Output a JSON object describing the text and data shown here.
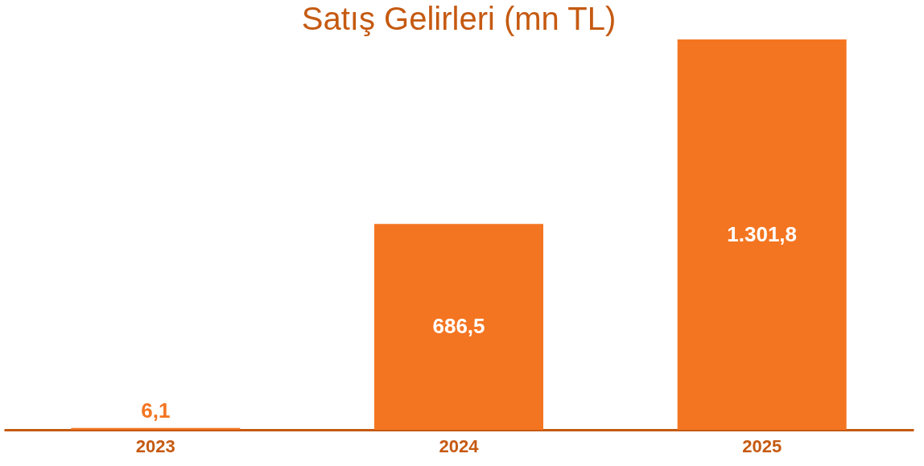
{
  "chart_data": {
    "type": "bar",
    "title": "Satış Gelirleri (mn TL)",
    "categories": [
      "2023",
      "2024",
      "2025"
    ],
    "values": [
      6.1,
      686.5,
      1301.8
    ],
    "color": "#f47521",
    "value_labels": [
      "6,1",
      "686,5",
      "1.301,8"
    ],
    "grid": false
  }
}
